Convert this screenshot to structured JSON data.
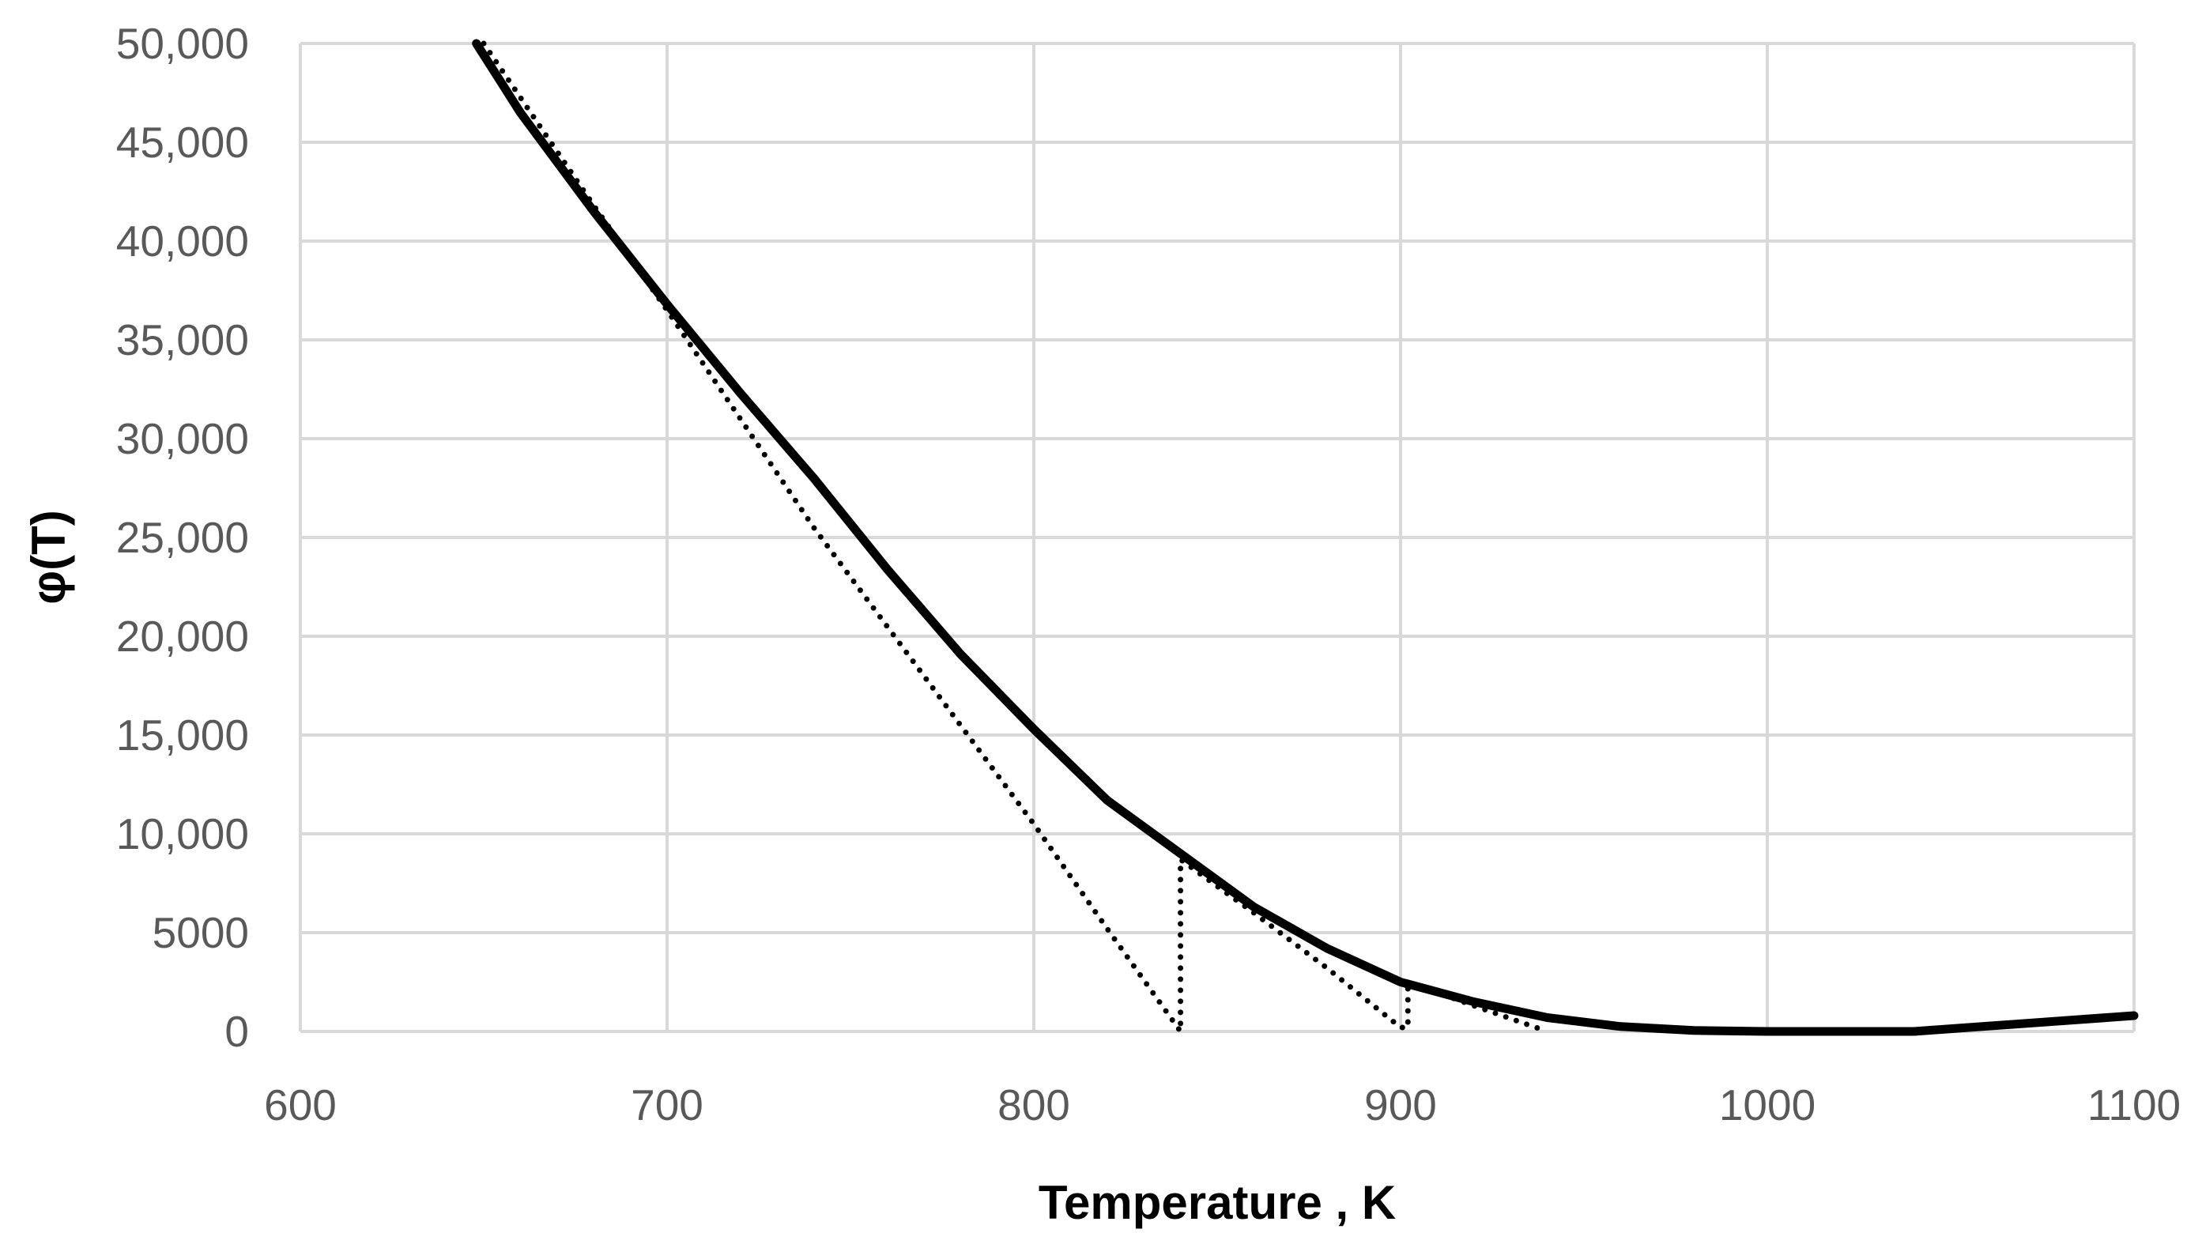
{
  "chart_data": {
    "type": "line",
    "title": "",
    "xlabel": "Temperature  , K",
    "ylabel": "φ(T)",
    "xlim": [
      600,
      1100
    ],
    "ylim": [
      0,
      50000
    ],
    "x_ticks": [
      600,
      700,
      800,
      900,
      1000,
      1100
    ],
    "x_tick_labels": [
      "600",
      "700",
      "800",
      "900",
      "1000",
      "1100"
    ],
    "y_ticks": [
      0,
      5000,
      10000,
      15000,
      20000,
      25000,
      30000,
      35000,
      40000,
      45000,
      50000
    ],
    "y_tick_labels": [
      "0",
      "5000",
      "10,000",
      "15,000",
      "20,000",
      "25,000",
      "30,000",
      "35,000",
      "40,000",
      "45,000",
      "50,000"
    ],
    "grid": true,
    "legend": "none",
    "series": [
      {
        "style": "solid",
        "color": "#000000",
        "x": [
          648,
          660,
          680,
          700,
          720,
          740,
          760,
          780,
          800,
          820,
          840,
          860,
          880,
          900,
          920,
          940,
          960,
          980,
          1000,
          1040,
          1100
        ],
        "y": [
          50000,
          46500,
          41500,
          36800,
          32300,
          28000,
          23400,
          19100,
          15300,
          11700,
          9000,
          6300,
          4200,
          2500,
          1500,
          700,
          250,
          50,
          0,
          0,
          800
        ]
      },
      {
        "style": "dotted",
        "color": "#000000",
        "x": [
          650,
          680,
          700,
          720,
          740,
          760,
          780,
          800,
          820,
          840,
          840,
          860,
          880,
          900,
          902,
          902,
          920,
          940
        ],
        "y": [
          50000,
          41800,
          36500,
          31000,
          25500,
          20500,
          15500,
          10500,
          5200,
          0,
          8700,
          6000,
          3200,
          200,
          200,
          2500,
          1300,
          0
        ]
      }
    ]
  }
}
